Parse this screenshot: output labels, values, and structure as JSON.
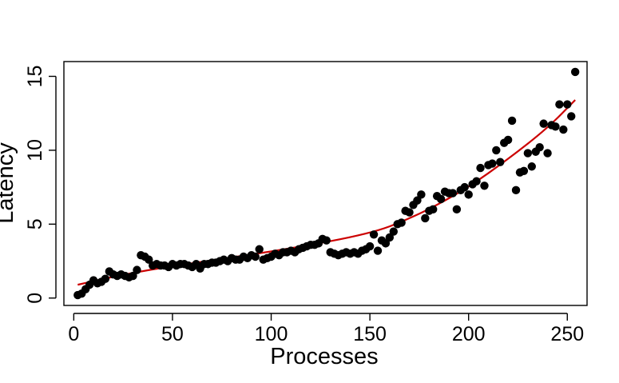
{
  "chart_data": {
    "type": "scatter",
    "title": "",
    "xlabel": "Processes",
    "ylabel": "Latency",
    "xlim": [
      -5,
      260
    ],
    "ylim": [
      -0.5,
      16
    ],
    "x_ticks": [
      0,
      50,
      100,
      150,
      200,
      250
    ],
    "y_ticks": [
      0,
      5,
      10,
      15
    ],
    "grid": false,
    "legend": "none",
    "point_color": "#000000",
    "fit_color": "#cc0000",
    "series": [
      {
        "kind": "points",
        "x": [
          2,
          4,
          6,
          8,
          10,
          12,
          14,
          16,
          18,
          20,
          22,
          24,
          26,
          28,
          30,
          32,
          34,
          36,
          38,
          40,
          42,
          44,
          46,
          48,
          50,
          52,
          54,
          56,
          58,
          60,
          62,
          64,
          66,
          68,
          70,
          72,
          74,
          76,
          78,
          80,
          82,
          84,
          86,
          88,
          90,
          92,
          94,
          96,
          98,
          100,
          102,
          104,
          106,
          108,
          110,
          112,
          114,
          116,
          118,
          120,
          122,
          124,
          126,
          128,
          130,
          132,
          134,
          136,
          138,
          140,
          142,
          144,
          146,
          148,
          150,
          152,
          154,
          156,
          158,
          160,
          162,
          164,
          166,
          168,
          170,
          172,
          174,
          176,
          178,
          180,
          182,
          184,
          186,
          188,
          190,
          192,
          194,
          196,
          198,
          200,
          202,
          204,
          206,
          208,
          210,
          212,
          214,
          216,
          218,
          220,
          222,
          224,
          226,
          228,
          230,
          232,
          234,
          236,
          238,
          240,
          242,
          244,
          246,
          248,
          250,
          252,
          254
        ],
        "y": [
          0.2,
          0.3,
          0.6,
          0.9,
          1.2,
          1.0,
          1.1,
          1.3,
          1.8,
          1.6,
          1.5,
          1.6,
          1.5,
          1.4,
          1.5,
          1.9,
          2.9,
          2.8,
          2.6,
          2.2,
          2.3,
          2.2,
          2.2,
          2.1,
          2.3,
          2.2,
          2.3,
          2.3,
          2.2,
          2.1,
          2.3,
          2.0,
          2.3,
          2.3,
          2.4,
          2.4,
          2.5,
          2.6,
          2.5,
          2.7,
          2.6,
          2.6,
          2.8,
          2.7,
          2.9,
          2.8,
          3.3,
          2.6,
          2.7,
          2.8,
          3.0,
          2.9,
          3.1,
          3.1,
          3.2,
          3.1,
          3.3,
          3.4,
          3.5,
          3.6,
          3.6,
          3.7,
          4.0,
          3.9,
          3.1,
          3.0,
          2.9,
          3.0,
          3.1,
          3.0,
          3.1,
          3.0,
          3.2,
          3.3,
          3.5,
          4.3,
          3.2,
          3.9,
          3.7,
          4.1,
          4.5,
          5.0,
          5.1,
          5.9,
          5.8,
          6.3,
          6.6,
          7.0,
          5.4,
          5.9,
          6.0,
          6.9,
          6.7,
          7.2,
          7.1,
          7.1,
          6.0,
          7.3,
          7.5,
          7.0,
          7.7,
          7.9,
          8.8,
          7.6,
          9.0,
          9.1,
          10.0,
          9.2,
          10.5,
          10.7,
          12.0,
          7.3,
          8.5,
          8.6,
          9.8,
          8.9,
          9.9,
          10.2,
          11.8,
          9.8,
          11.7,
          11.6,
          13.1,
          11.4,
          13.1,
          12.3,
          15.3
        ]
      },
      {
        "kind": "fit",
        "x": [
          2,
          20,
          40,
          60,
          80,
          100,
          120,
          140,
          155,
          165,
          180,
          200,
          220,
          240,
          254
        ],
        "y": [
          0.9,
          1.45,
          1.95,
          2.35,
          2.75,
          3.15,
          3.6,
          4.1,
          4.6,
          5.1,
          6.0,
          7.5,
          9.4,
          11.5,
          13.4
        ]
      }
    ]
  }
}
